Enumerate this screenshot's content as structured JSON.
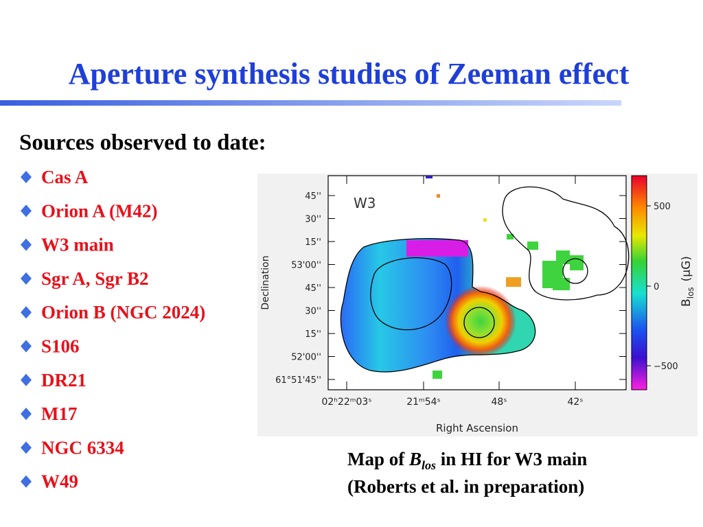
{
  "header": {
    "title": "Aperture synthesis studies of Zeeman effect"
  },
  "body": {
    "heading": "Sources observed to date:",
    "items": [
      "Cas A",
      "Orion A (M42)",
      "W3 main",
      "Sgr A, Sgr B2",
      "Orion B (NGC 2024)",
      "S106",
      "DR21",
      "M17",
      "NGC 6334",
      "W49"
    ]
  },
  "figure": {
    "label": "W3",
    "y_axis_label": "Declination",
    "x_axis_label": "Right Ascension",
    "y_ticks": [
      "45''",
      "30''",
      "15''",
      "53'00''",
      "45''",
      "30''",
      "15''",
      "52'00''",
      "61°51'45''"
    ],
    "x_ticks": [
      "02ʰ22ᵐ03ˢ",
      "21ᵐ54ˢ",
      "48ˢ",
      "42ˢ"
    ],
    "colorbar_ticks": [
      "500",
      "0",
      "−500"
    ],
    "colorbar_label": {
      "symbol": "B",
      "subscript": "los",
      "unit": "(μG)"
    }
  },
  "caption": {
    "line1": {
      "prefix": "Map of ",
      "symbol": "B",
      "subscript": "los",
      "suffix": " in HI for W3 main"
    },
    "line2": "(Roberts et al. in preparation)"
  }
}
